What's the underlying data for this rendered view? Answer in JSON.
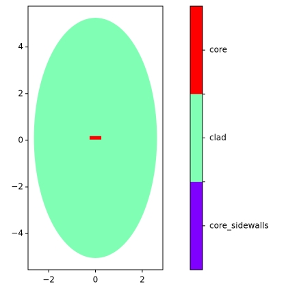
{
  "chart_data": {
    "type": "region-map",
    "xlim": [
      -2.88,
      2.88
    ],
    "ylim": [
      -5.55,
      5.75
    ],
    "xticks": [
      {
        "value": -2,
        "label": "−2"
      },
      0,
      2
    ],
    "yticks": [
      {
        "value": -4,
        "label": "−4"
      },
      {
        "value": -2,
        "label": "−2"
      },
      0,
      2,
      4
    ],
    "regions": [
      {
        "name": "core_sidewalls",
        "color": "#8000ff",
        "shapes": []
      },
      {
        "name": "clad",
        "color": "#80ffb4",
        "shapes": [
          {
            "kind": "ellipse",
            "center": [
              0,
              0.1
            ],
            "radii": [
              2.63,
              5.15
            ]
          }
        ]
      },
      {
        "name": "core",
        "color": "#ff0000",
        "shapes": [
          {
            "kind": "rect",
            "x": [
              -0.25,
              0.25
            ],
            "y": [
              0.03,
              0.18
            ]
          }
        ]
      }
    ]
  }
}
